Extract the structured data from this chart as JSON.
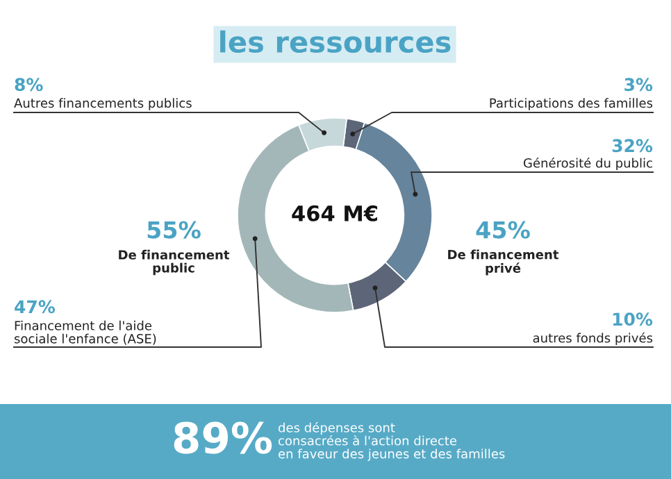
{
  "chart_data": {
    "type": "donut",
    "title": "les ressources",
    "categories": [
      "Participations des familles",
      "Générosité du public",
      "autres fonds privés",
      "Financement de l'aide\nsociale l'enfance (ASE)",
      "Autres financements publics"
    ],
    "values": [
      3,
      32,
      10,
      47,
      8
    ],
    "value_labels": [
      "3%",
      "32%",
      "10%",
      "47%",
      "8%"
    ],
    "colors": [
      "#5d6678",
      "#66849c",
      "#5d6678",
      "#a3b7b9",
      "#c7d8da"
    ],
    "annotations": [
      "464 M€",
      "55%",
      "De financement\npublic",
      "45%",
      "De financement\nprivé",
      "89%",
      "des dépenses sont\nconsacrées à l'action directe\nen faveur des jeunes et des familles"
    ]
  }
}
